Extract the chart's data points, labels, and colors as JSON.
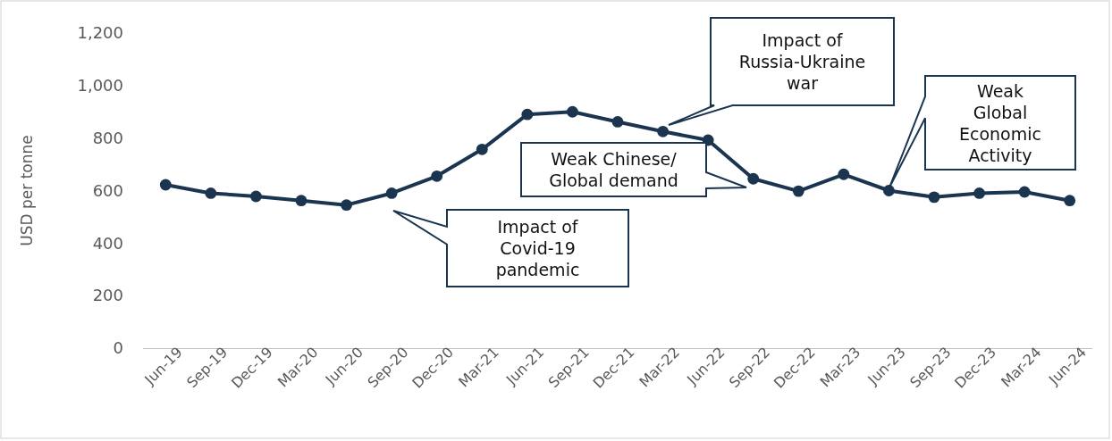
{
  "chart_data": {
    "type": "line",
    "ylabel": "USD per tonne",
    "categories": [
      "Jun-19",
      "Sep-19",
      "Dec-19",
      "Mar-20",
      "Jun-20",
      "Sep-20",
      "Dec-20",
      "Mar-21",
      "Jun-21",
      "Sep-21",
      "Dec-21",
      "Mar-22",
      "Jun-22",
      "Sep-22",
      "Dec-22",
      "Mar-23",
      "Jun-23",
      "Sep-23",
      "Dec-23",
      "Mar-24",
      "Jun-24"
    ],
    "series": [
      {
        "color": "#1b3550",
        "values": [
          622,
          590,
          578,
          562,
          545,
          590,
          655,
          757,
          890,
          900,
          862,
          825,
          792,
          645,
          598,
          662,
          600,
          575,
          590,
          595,
          562
        ]
      }
    ],
    "ylim": [
      0,
      1200
    ],
    "yticks": [
      {
        "value": 0,
        "label": "0"
      },
      {
        "value": 200,
        "label": "200"
      },
      {
        "value": 400,
        "label": "400"
      },
      {
        "value": 600,
        "label": "600"
      },
      {
        "value": 800,
        "label": "800"
      },
      {
        "value": 1000,
        "label": "1,000"
      },
      {
        "value": 1200,
        "label": "1,200"
      }
    ],
    "grid": false,
    "legend": false,
    "marker": "circle",
    "line_style": "solid",
    "annotations": [
      "Impact of Covid-19 pandemic",
      "Impact of Russia-Ukraine war",
      "Weak Chinese/ Global demand",
      "Weak Global Economic Activity"
    ]
  }
}
